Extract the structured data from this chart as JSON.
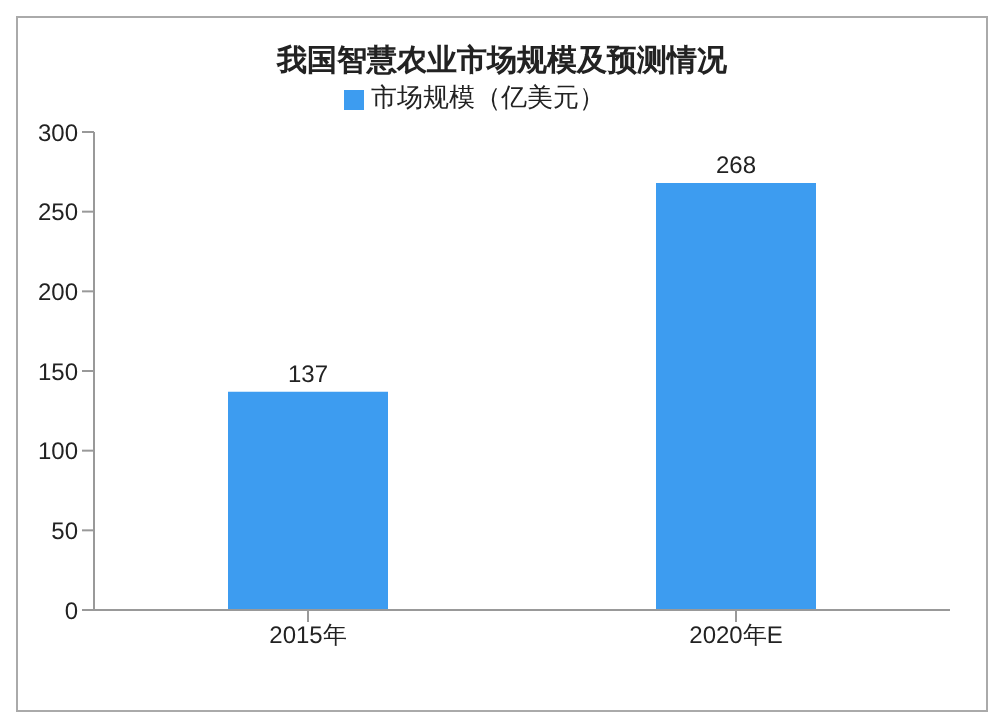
{
  "chart_data": {
    "type": "bar",
    "title": "我国智慧农业市场规模及预测情况",
    "categories": [
      "2015年",
      "2020年E"
    ],
    "series": [
      {
        "name": "市场规模（亿美元）",
        "color": "#3d9cf0",
        "values": [
          137,
          268
        ]
      }
    ],
    "ylim": [
      0,
      300
    ],
    "yticks": [
      0,
      50,
      100,
      150,
      200,
      250,
      300
    ],
    "grid": false,
    "legend": "top",
    "data_labels": true
  }
}
